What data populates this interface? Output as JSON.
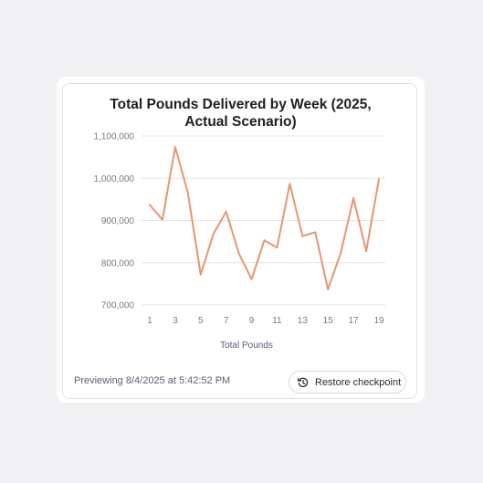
{
  "footer": {
    "preview_text": "Previewing 8/4/2025 at 5:42:52 PM",
    "restore_label": "Restore checkpoint",
    "restore_icon": "history-icon"
  },
  "chart_data": {
    "type": "line",
    "title_lines": [
      "Total Pounds Delivered by Week (2025,",
      "Actual Scenario)"
    ],
    "xlabel": "Total Pounds",
    "ylabel": "",
    "x": [
      1,
      2,
      3,
      4,
      5,
      6,
      7,
      8,
      9,
      10,
      11,
      12,
      13,
      14,
      15,
      16,
      17,
      18,
      19
    ],
    "x_ticks": [
      1,
      3,
      5,
      7,
      9,
      11,
      13,
      15,
      17,
      19
    ],
    "y_ticks": [
      700000,
      800000,
      900000,
      1000000,
      1100000
    ],
    "y_tick_labels": [
      "700,000",
      "800,000",
      "900,000",
      "1,000,000",
      "1,100,000"
    ],
    "ylim": [
      700000,
      1100000
    ],
    "xlim": [
      1,
      19
    ],
    "grid": true,
    "legend": "none",
    "series": [
      {
        "color": "#e8956f",
        "values": [
          937000,
          902000,
          1074000,
          965000,
          772000,
          868000,
          921000,
          822000,
          761000,
          853000,
          836000,
          987000,
          863000,
          872000,
          737000,
          823000,
          953000,
          827000,
          998000
        ]
      }
    ]
  }
}
